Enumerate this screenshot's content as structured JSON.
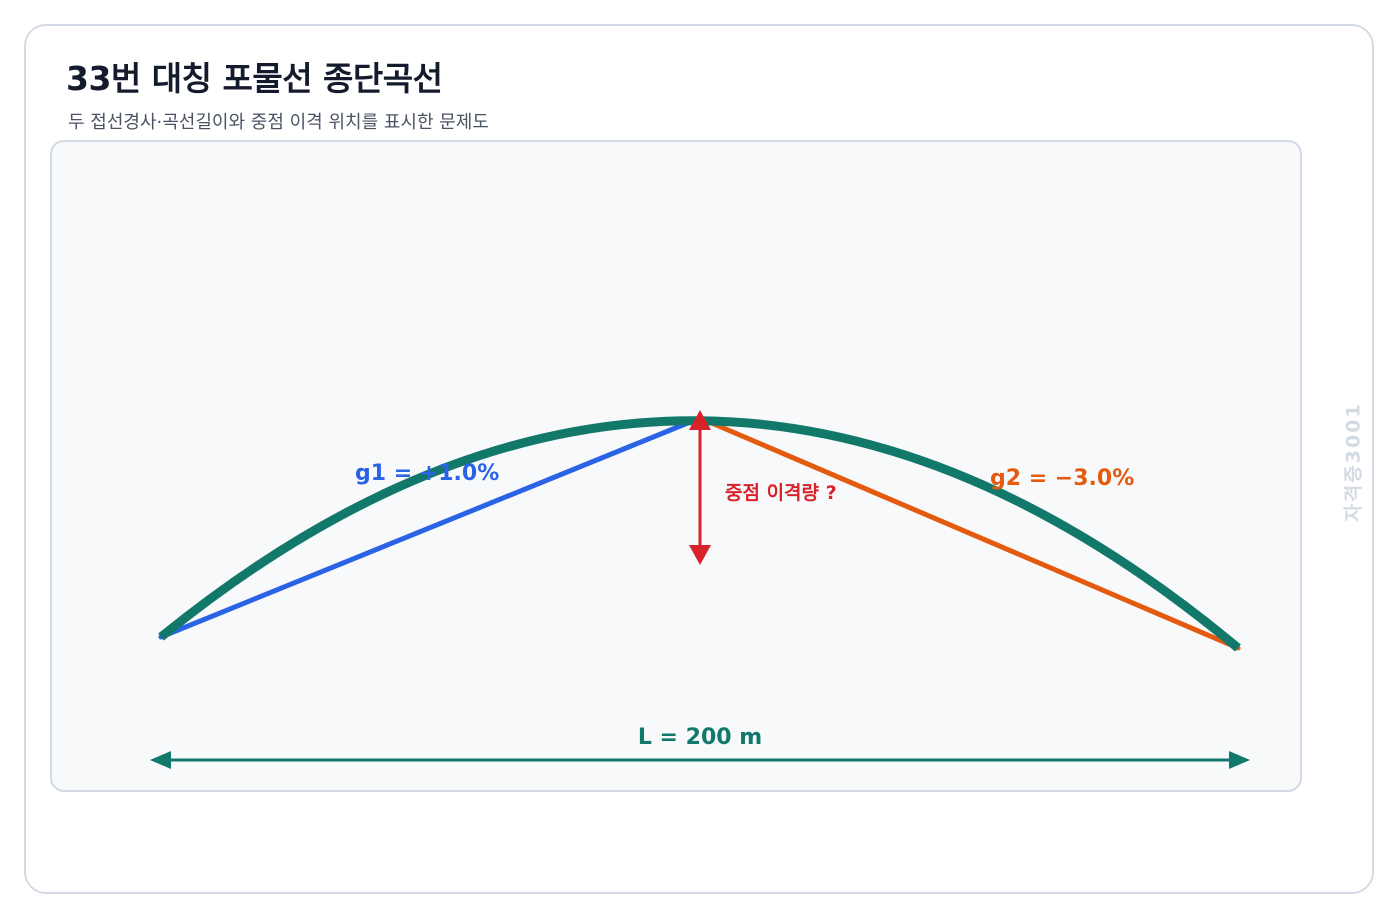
{
  "header": {
    "title": "33번 대칭 포물선 종단곡선",
    "subtitle": "두 접선경사·곡선길이와 중점 이격 위치를 표시한 문제도"
  },
  "diagram": {
    "grade_in_label": "g1 = +1.0%",
    "grade_out_label": "g2 = −3.0%",
    "offset_label": "중점 이격량 ?",
    "length_label": "L = 200 m",
    "grade_in_percent": 1.0,
    "grade_out_percent": -3.0,
    "curve_length_m": 200
  },
  "watermark": "자격증3001",
  "colors": {
    "curve": "#12786a",
    "grade_in": "#2b63e6",
    "grade_out": "#e45a0e",
    "offset_arrow": "#d8232a",
    "length_arrow": "#12786a",
    "title": "#141b2d"
  }
}
